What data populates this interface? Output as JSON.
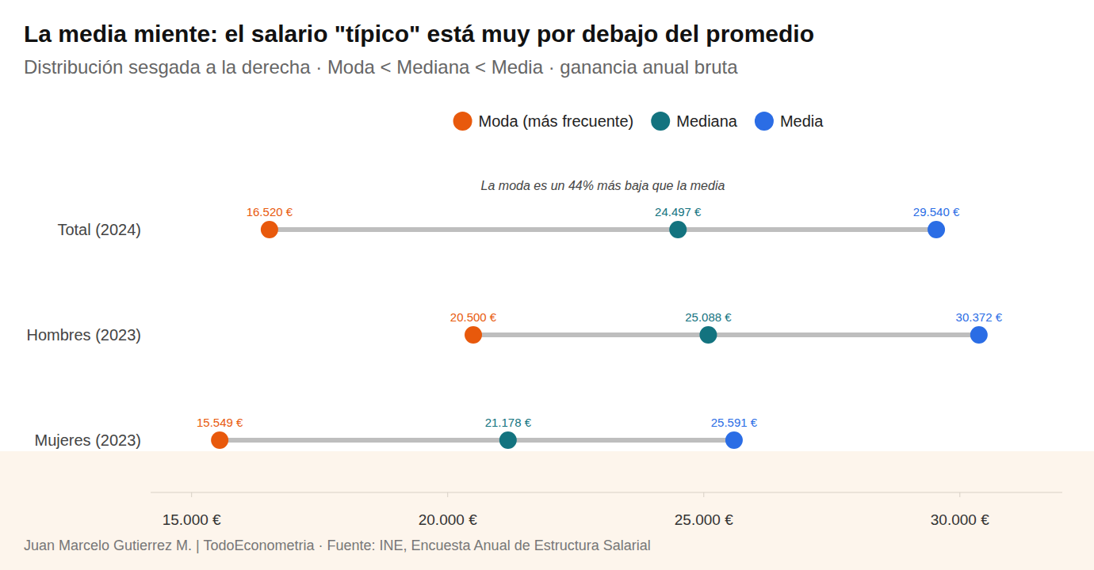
{
  "chart_data": {
    "type": "dumbbell",
    "orientation": "horizontal",
    "title": "La media miente: el salario \"típico\" está muy por debajo del promedio",
    "subtitle": "Distribución sesgada a la derecha · Moda < Mediana < Media · ganancia anual bruta",
    "annotation": "La moda es un 44% más baja que la media",
    "caption": "Juan Marcelo Gutierrez M. | TodoEconometria  ·  Fuente: INE, Encuesta Anual de Estructura Salarial",
    "categories": [
      "Total (2024)",
      "Hombres (2023)",
      "Mujeres (2023)"
    ],
    "series": [
      {
        "name": "Moda (más frecuente)",
        "color": "#e8590c",
        "values": [
          16520,
          20500,
          15549
        ],
        "value_labels": [
          "16.520 €",
          "20.500 €",
          "15.549 €"
        ]
      },
      {
        "name": "Mediana",
        "color": "#13737f",
        "values": [
          24497,
          25088,
          21178
        ],
        "value_labels": [
          "24.497 €",
          "25.088 €",
          "21.178 €"
        ]
      },
      {
        "name": "Media",
        "color": "#2b6de5",
        "values": [
          29540,
          30372,
          25591
        ],
        "value_labels": [
          "29.540 €",
          "30.372 €",
          "25.591 €"
        ]
      }
    ],
    "xlim": [
      14200,
      32000
    ],
    "xticks": [
      {
        "value": 15000,
        "label": "15.000 €"
      },
      {
        "value": 20000,
        "label": "20.000 €"
      },
      {
        "value": 25000,
        "label": "25.000 €"
      },
      {
        "value": 30000,
        "label": "30.000 €"
      }
    ],
    "legend": "top",
    "data_labels": true,
    "grid": false
  }
}
